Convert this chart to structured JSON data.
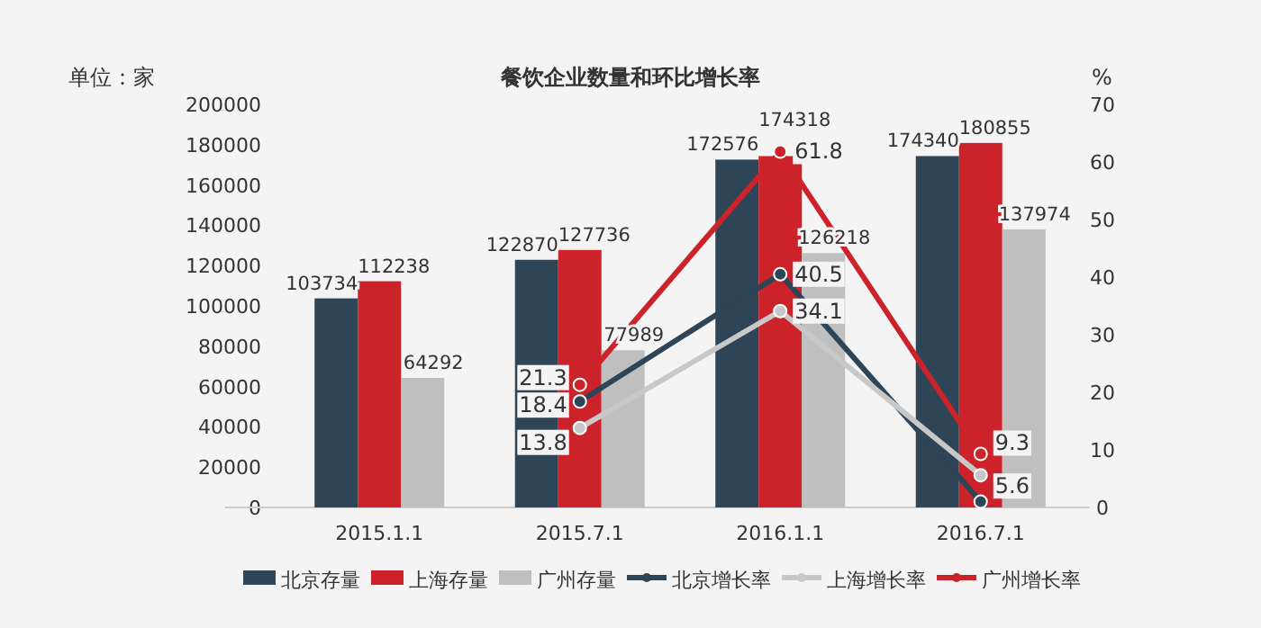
{
  "chart_data": {
    "type": "bar",
    "title": "餐饮企业数量和环比增长率",
    "ylabel": "单位：家",
    "y2label": "%",
    "categories": [
      "2015.1.1",
      "2015.7.1",
      "2016.1.1",
      "2016.7.1"
    ],
    "series": [
      {
        "name": "北京存量",
        "color": "#2e4457",
        "values": [
          103734,
          122870,
          172576,
          174340
        ],
        "value_labels": [
          "103734",
          "122870",
          "172576",
          "174340"
        ]
      },
      {
        "name": "上海存量",
        "color": "#cc2229",
        "values": [
          112238,
          127736,
          174318,
          180855
        ],
        "value_labels": [
          "112238",
          "127736",
          "174318",
          "180855"
        ]
      },
      {
        "name": "广州存量",
        "color": "#bfbfbf",
        "values": [
          64292,
          77989,
          126218,
          137974
        ],
        "value_labels": [
          "64292",
          "77989",
          "126218",
          "137974"
        ]
      },
      {
        "name": "北京增长率",
        "type": "line",
        "axis": "y2",
        "color": "#2e4457",
        "values": [
          null,
          18.4,
          40.5,
          1.0
        ],
        "value_labels": [
          null,
          "18.4",
          "40.5",
          null
        ]
      },
      {
        "name": "上海增长率",
        "type": "line",
        "axis": "y2",
        "color": "#c8c8c8",
        "values": [
          null,
          13.8,
          34.1,
          5.6
        ],
        "value_labels": [
          null,
          "13.8",
          "34.1",
          "5.6"
        ]
      },
      {
        "name": "广州增长率",
        "type": "line",
        "axis": "y2",
        "color": "#cc2229",
        "values": [
          null,
          21.3,
          61.8,
          9.3
        ],
        "value_labels": [
          null,
          "21.3",
          "61.8",
          "9.3"
        ]
      }
    ],
    "ylim": [
      0,
      200000
    ],
    "yticks": [
      0,
      20000,
      40000,
      60000,
      80000,
      100000,
      120000,
      140000,
      160000,
      180000,
      200000
    ],
    "y2lim": [
      0,
      70
    ],
    "y2ticks": [
      0,
      10,
      20,
      30,
      40,
      50,
      60,
      70
    ],
    "marker": "circle",
    "legend": "bottom",
    "grid": false
  }
}
